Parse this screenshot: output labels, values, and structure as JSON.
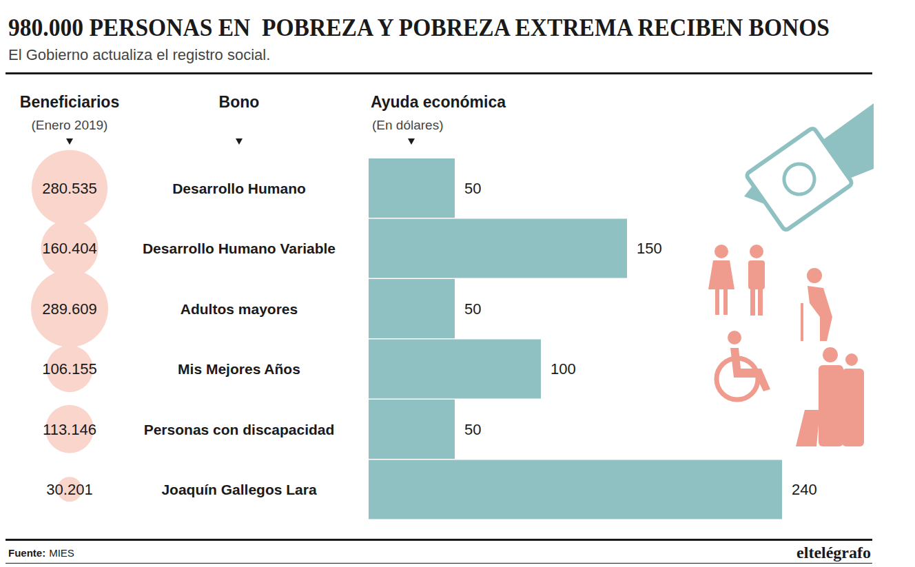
{
  "chart_data": {
    "type": "bar",
    "orientation": "horizontal",
    "title": "980.000 PERSONAS EN  POBREZA Y POBREZA EXTREMA RECIBEN BONOS",
    "subtitle": "El Gobierno actualiza el registro social.",
    "category_header": "Bono",
    "value_header": "Ayuda económica",
    "value_subheader": "(En dólares)",
    "categories": [
      "Desarrollo Humano",
      "Desarrollo Humano Variable",
      "Adultos mayores",
      "Mis Mejores Años",
      "Personas con discapacidad",
      "Joaquín Gallegos Lara"
    ],
    "values": [
      50,
      150,
      50,
      100,
      50,
      240
    ],
    "color": "#8fc1c3",
    "xlim": [
      0,
      240
    ],
    "tick_labels": false,
    "data_labels": true,
    "beneficiaries": {
      "header": "Beneficiarios",
      "subheader": "(Enero 2019)",
      "values": [
        280535,
        160404,
        289609,
        106155,
        113146,
        30201
      ],
      "value_labels": [
        "280.535",
        "160.404",
        "289.609",
        "106.155",
        "113.146",
        "30.201"
      ],
      "color": "#f9d5cb"
    },
    "source_label": "Fuente:",
    "source": "MIES",
    "publisher": "eltelégrafo"
  }
}
